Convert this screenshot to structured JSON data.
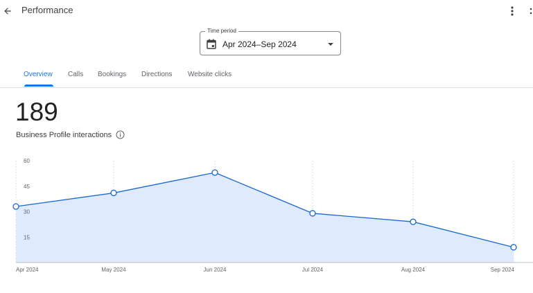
{
  "header": {
    "title": "Performance",
    "back_icon": "arrow-back-icon",
    "more_icon": "more-vert-icon"
  },
  "period": {
    "legend": "Time period",
    "value": "Apr 2024–Sep 2024",
    "calendar_icon": "calendar-icon",
    "dropdown_icon": "caret-down-icon"
  },
  "tabs": [
    {
      "label": "Overview",
      "active": true
    },
    {
      "label": "Calls",
      "active": false
    },
    {
      "label": "Bookings",
      "active": false
    },
    {
      "label": "Directions",
      "active": false
    },
    {
      "label": "Website clicks",
      "active": false
    }
  ],
  "summary": {
    "total": "189",
    "label": "Business Profile interactions",
    "info_icon": "info-icon"
  },
  "colors": {
    "accent": "#1a73e8",
    "line": "#1967d2",
    "area": "#dfeafc"
  },
  "chart_data": {
    "type": "area",
    "categories": [
      "Apr 2024",
      "May 2024",
      "Jun 2024",
      "Jul 2024",
      "Aug 2024",
      "Sep 2024"
    ],
    "series": [
      {
        "values": [
          33,
          41,
          53,
          29,
          24,
          9
        ]
      }
    ],
    "ylim": [
      0,
      60
    ],
    "yticks": [
      "15",
      "30",
      "45",
      "60"
    ],
    "grid": "vertical dashed",
    "legend": "none"
  }
}
